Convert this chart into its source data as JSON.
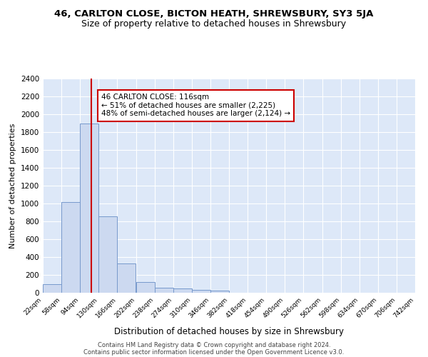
{
  "title1": "46, CARLTON CLOSE, BICTON HEATH, SHREWSBURY, SY3 5JA",
  "title2": "Size of property relative to detached houses in Shrewsbury",
  "xlabel": "Distribution of detached houses by size in Shrewsbury",
  "ylabel": "Number of detached properties",
  "bin_edges": [
    22,
    58,
    94,
    130,
    166,
    202,
    238,
    274,
    310,
    346,
    382,
    418,
    454,
    490,
    526,
    562,
    598,
    634,
    670,
    706,
    742
  ],
  "bin_heights": [
    100,
    1020,
    1900,
    860,
    325,
    120,
    55,
    45,
    30,
    25,
    0,
    0,
    0,
    0,
    0,
    0,
    0,
    0,
    0,
    0
  ],
  "bar_color": "#ccd9f0",
  "bar_edge_color": "#7799cc",
  "vline_x": 116,
  "vline_color": "#cc0000",
  "annotation_text": "46 CARLTON CLOSE: 116sqm\n← 51% of detached houses are smaller (2,225)\n48% of semi-detached houses are larger (2,124) →",
  "annotation_box_color": "#ffffff",
  "annotation_box_edge": "#cc0000",
  "ylim": [
    0,
    2400
  ],
  "yticks": [
    0,
    200,
    400,
    600,
    800,
    1000,
    1200,
    1400,
    1600,
    1800,
    2000,
    2200,
    2400
  ],
  "xtick_labels": [
    "22sqm",
    "58sqm",
    "94sqm",
    "130sqm",
    "166sqm",
    "202sqm",
    "238sqm",
    "274sqm",
    "310sqm",
    "346sqm",
    "382sqm",
    "418sqm",
    "454sqm",
    "490sqm",
    "526sqm",
    "562sqm",
    "598sqm",
    "634sqm",
    "670sqm",
    "706sqm",
    "742sqm"
  ],
  "footnote1": "Contains HM Land Registry data © Crown copyright and database right 2024.",
  "footnote2": "Contains public sector information licensed under the Open Government Licence v3.0.",
  "bg_color": "#ffffff",
  "plot_bg_color": "#dde8f8",
  "grid_color": "#ffffff",
  "title1_fontsize": 9.5,
  "title2_fontsize": 9,
  "ann_fontsize": 7.5
}
